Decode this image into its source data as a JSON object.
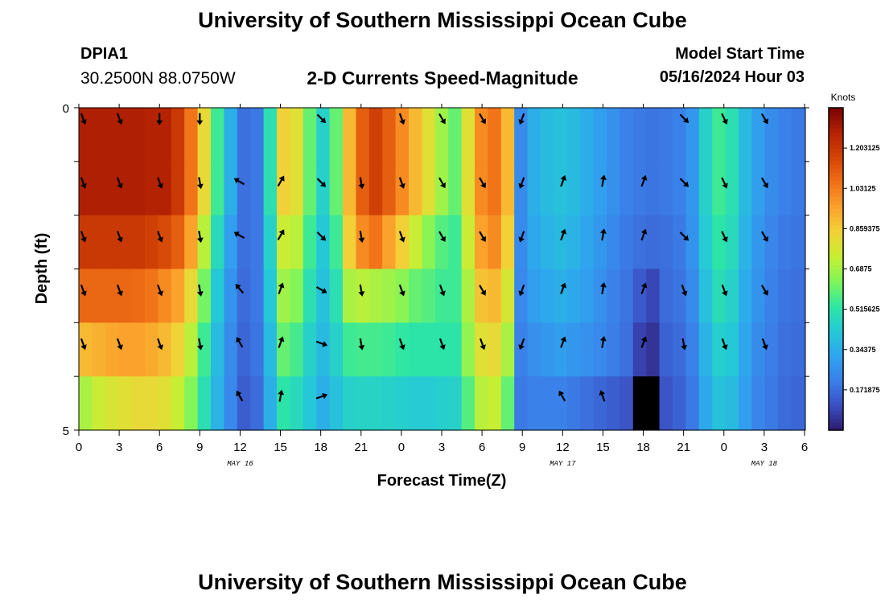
{
  "header": {
    "title": "University of Southern Mississippi Ocean Cube",
    "station": "DPIA1",
    "coordinates": "30.2500N  88.0750W",
    "subtitle": "2-D Currents Speed-Magnitude",
    "model_start_label": "Model Start Time",
    "model_start_value": "05/16/2024 Hour 03"
  },
  "footer": {
    "title": "University of Southern Mississippi Ocean Cube"
  },
  "chart_data": {
    "type": "heatmap",
    "title": "2-D Currents Speed-Magnitude",
    "xlabel": "Forecast Time(Z)",
    "ylabel": "Depth (ft)",
    "x_tick_labels": [
      "0",
      "3",
      "6",
      "9",
      "12",
      "15",
      "18",
      "21",
      "0",
      "3",
      "6",
      "9",
      "12",
      "15",
      "18",
      "21",
      "0",
      "3",
      "6"
    ],
    "date_labels": [
      {
        "label": "MAY 16",
        "at_tick": 4
      },
      {
        "label": "MAY 17",
        "at_tick": 12
      },
      {
        "label": "MAY 18",
        "at_tick": 17
      }
    ],
    "y_tick_labels": [
      "0",
      "5"
    ],
    "depth_range": [
      0,
      5
    ],
    "hours": [
      0,
      1,
      2,
      3,
      4,
      5,
      6,
      7,
      8,
      9,
      10,
      11,
      12,
      13,
      14,
      15,
      16,
      17,
      18,
      19,
      20,
      21,
      22,
      23,
      24,
      25,
      26,
      27,
      28,
      29,
      30,
      31,
      32,
      33,
      34,
      35,
      36,
      37,
      38,
      39,
      40,
      41,
      42,
      43,
      44,
      45,
      46,
      47,
      48,
      49,
      50,
      51,
      52,
      53,
      54
    ],
    "speed_by_layer": [
      [
        1.28,
        1.28,
        1.28,
        1.28,
        1.28,
        1.27,
        1.27,
        1.2,
        1.05,
        0.82,
        0.55,
        0.35,
        0.18,
        0.2,
        0.5,
        0.85,
        0.8,
        0.6,
        0.45,
        0.6,
        0.9,
        1.1,
        1.18,
        1.1,
        1.0,
        0.9,
        0.8,
        0.68,
        0.6,
        0.8,
        1.0,
        1.05,
        0.9,
        0.25,
        0.35,
        0.38,
        0.4,
        0.38,
        0.34,
        0.3,
        0.26,
        0.22,
        0.2,
        0.19,
        0.2,
        0.22,
        0.28,
        0.45,
        0.55,
        0.5,
        0.38,
        0.3,
        0.25,
        0.22,
        0.2
      ],
      [
        1.28,
        1.28,
        1.28,
        1.28,
        1.28,
        1.27,
        1.27,
        1.2,
        1.05,
        0.82,
        0.55,
        0.35,
        0.18,
        0.2,
        0.5,
        0.85,
        0.8,
        0.6,
        0.45,
        0.6,
        0.9,
        1.1,
        1.18,
        1.1,
        1.0,
        0.9,
        0.8,
        0.68,
        0.6,
        0.8,
        1.0,
        1.05,
        0.9,
        0.25,
        0.35,
        0.38,
        0.4,
        0.38,
        0.34,
        0.3,
        0.26,
        0.22,
        0.2,
        0.19,
        0.2,
        0.22,
        0.28,
        0.45,
        0.55,
        0.5,
        0.38,
        0.3,
        0.25,
        0.22,
        0.2
      ],
      [
        1.2,
        1.2,
        1.2,
        1.2,
        1.2,
        1.18,
        1.15,
        1.1,
        0.95,
        0.72,
        0.48,
        0.3,
        0.18,
        0.2,
        0.45,
        0.75,
        0.72,
        0.55,
        0.42,
        0.55,
        0.85,
        1.0,
        1.05,
        0.95,
        0.85,
        0.75,
        0.65,
        0.58,
        0.55,
        0.75,
        0.95,
        1.0,
        0.85,
        0.25,
        0.33,
        0.36,
        0.38,
        0.36,
        0.32,
        0.28,
        0.24,
        0.2,
        0.18,
        0.17,
        0.18,
        0.2,
        0.27,
        0.43,
        0.52,
        0.48,
        0.36,
        0.28,
        0.23,
        0.2,
        0.19
      ],
      [
        1.08,
        1.08,
        1.08,
        1.08,
        1.07,
        1.05,
        1.0,
        0.95,
        0.82,
        0.62,
        0.42,
        0.27,
        0.17,
        0.2,
        0.42,
        0.68,
        0.64,
        0.5,
        0.4,
        0.5,
        0.7,
        0.72,
        0.7,
        0.68,
        0.65,
        0.6,
        0.58,
        0.55,
        0.55,
        0.7,
        0.88,
        0.9,
        0.78,
        0.24,
        0.3,
        0.33,
        0.35,
        0.33,
        0.3,
        0.26,
        0.22,
        0.19,
        0.13,
        0.09,
        0.17,
        0.19,
        0.25,
        0.4,
        0.49,
        0.45,
        0.34,
        0.27,
        0.22,
        0.19,
        0.18
      ],
      [
        0.9,
        0.92,
        0.94,
        0.95,
        0.95,
        0.93,
        0.9,
        0.84,
        0.72,
        0.55,
        0.38,
        0.25,
        0.16,
        0.19,
        0.38,
        0.6,
        0.56,
        0.45,
        0.38,
        0.45,
        0.55,
        0.56,
        0.56,
        0.55,
        0.53,
        0.52,
        0.52,
        0.52,
        0.52,
        0.66,
        0.8,
        0.82,
        0.7,
        0.22,
        0.26,
        0.28,
        0.3,
        0.28,
        0.26,
        0.24,
        0.21,
        0.18,
        0.08,
        0.05,
        0.15,
        0.17,
        0.22,
        0.36,
        0.44,
        0.42,
        0.32,
        0.25,
        0.21,
        0.18,
        0.17
      ],
      [
        0.7,
        0.75,
        0.78,
        0.8,
        0.82,
        0.82,
        0.8,
        0.74,
        0.64,
        0.5,
        0.36,
        0.24,
        0.14,
        0.17,
        0.35,
        0.52,
        0.48,
        0.42,
        0.35,
        0.4,
        0.45,
        0.46,
        0.46,
        0.45,
        0.44,
        0.43,
        0.43,
        0.44,
        0.45,
        0.58,
        0.72,
        0.74,
        0.6,
        0.2,
        0.22,
        0.22,
        0.22,
        0.2,
        0.18,
        0.16,
        0.14,
        0.12,
        0.0,
        0.0,
        0.12,
        0.15,
        0.2,
        0.33,
        0.4,
        0.38,
        0.3,
        0.23,
        0.2,
        0.17,
        0.16
      ]
    ],
    "arrow_hours": [
      0,
      3,
      6,
      9,
      12,
      15,
      18,
      21,
      24,
      27,
      30,
      33,
      36,
      39,
      42,
      45,
      48,
      51,
      54
    ],
    "arrow_layers": [
      0,
      1,
      2,
      3,
      4,
      5
    ],
    "arrow_directions_deg": [
      [
        160,
        160,
        180,
        180,
        null,
        null,
        135,
        null,
        160,
        150,
        150,
        200,
        null,
        null,
        null,
        135,
        155,
        150,
        null
      ],
      [
        160,
        160,
        160,
        170,
        300,
        30,
        135,
        170,
        160,
        150,
        150,
        200,
        20,
        10,
        20,
        135,
        155,
        150,
        null
      ],
      [
        160,
        160,
        160,
        170,
        300,
        30,
        135,
        170,
        160,
        150,
        150,
        200,
        20,
        10,
        20,
        135,
        155,
        150,
        null
      ],
      [
        160,
        160,
        160,
        170,
        320,
        20,
        120,
        170,
        160,
        160,
        150,
        200,
        20,
        10,
        20,
        160,
        160,
        150,
        null
      ],
      [
        160,
        160,
        160,
        170,
        330,
        20,
        110,
        170,
        160,
        160,
        160,
        200,
        20,
        10,
        20,
        170,
        160,
        160,
        null
      ],
      [
        null,
        null,
        null,
        null,
        330,
        10,
        70,
        null,
        null,
        null,
        null,
        null,
        330,
        340,
        null,
        null,
        null,
        null,
        null
      ]
    ],
    "colorbar": {
      "unit_label": "Knots",
      "range": [
        0,
        1.375
      ],
      "tick_labels": [
        "0.171875",
        "0.34375",
        "0.515625",
        "0.6875",
        "0.859375",
        "1.03125",
        "1.203125"
      ],
      "tick_values": [
        0.171875,
        0.34375,
        0.515625,
        0.6875,
        0.859375,
        1.03125,
        1.203125
      ],
      "colormap": [
        "#2e1a6e",
        "#3b4ec2",
        "#3b7fe9",
        "#2fa4ef",
        "#25c9d6",
        "#2ee6a4",
        "#80f55a",
        "#c6ef34",
        "#f2d238",
        "#fba12c",
        "#f07017",
        "#d44506",
        "#b42204",
        "#7a0403"
      ]
    }
  }
}
